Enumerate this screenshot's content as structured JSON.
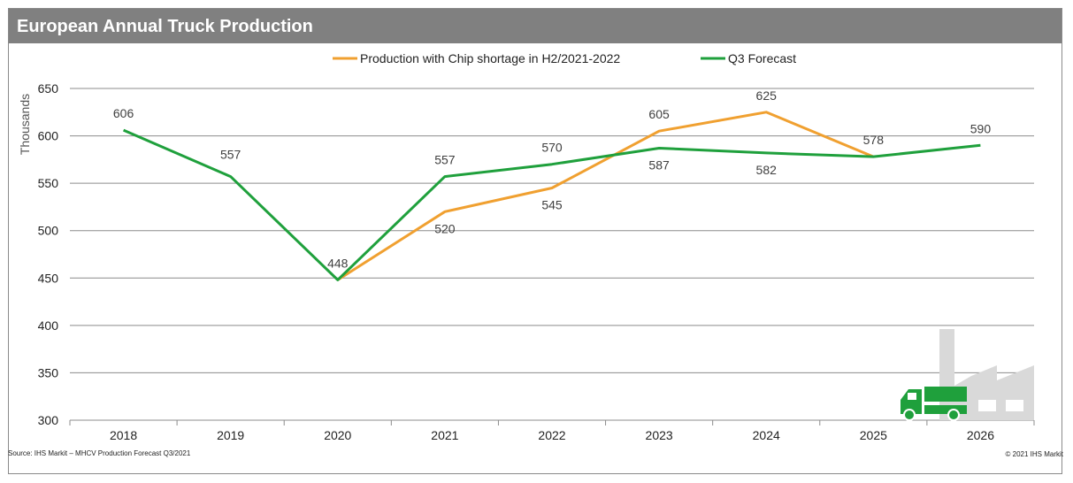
{
  "title": "European Annual Truck Production",
  "source": "Source: IHS Markit – MHCV Production Forecast Q3/2021",
  "copyright": "© 2021 IHS Markit",
  "icon": "truck-factory-icon",
  "colors": {
    "orange": "#F0A030",
    "green": "#1FA03C",
    "grid": "#8c8c8c",
    "title_bar": "#808080"
  },
  "chart_data": {
    "type": "line",
    "ylabel": "Thousands",
    "xlabel": "",
    "ylim": [
      300,
      650
    ],
    "yticks": [
      300,
      350,
      400,
      450,
      500,
      550,
      600,
      650
    ],
    "categories": [
      "2018",
      "2019",
      "2020",
      "2021",
      "2022",
      "2023",
      "2024",
      "2025",
      "2026"
    ],
    "grid": "horizontal",
    "legend_position": "top-center",
    "series": [
      {
        "name": "Production with Chip shortage in H2/2021-2022",
        "color": "#F0A030",
        "values": [
          null,
          null,
          448,
          520,
          545,
          605,
          625,
          578,
          null
        ],
        "labels": [
          null,
          null,
          null,
          "520",
          "545",
          "605",
          "625",
          "578",
          null
        ]
      },
      {
        "name": "Q3 Forecast",
        "color": "#1FA03C",
        "values": [
          606,
          557,
          448,
          557,
          570,
          587,
          582,
          578,
          590
        ],
        "labels": [
          "606",
          "557",
          "448",
          "557",
          "570",
          "587",
          "582",
          null,
          "590"
        ]
      }
    ]
  }
}
